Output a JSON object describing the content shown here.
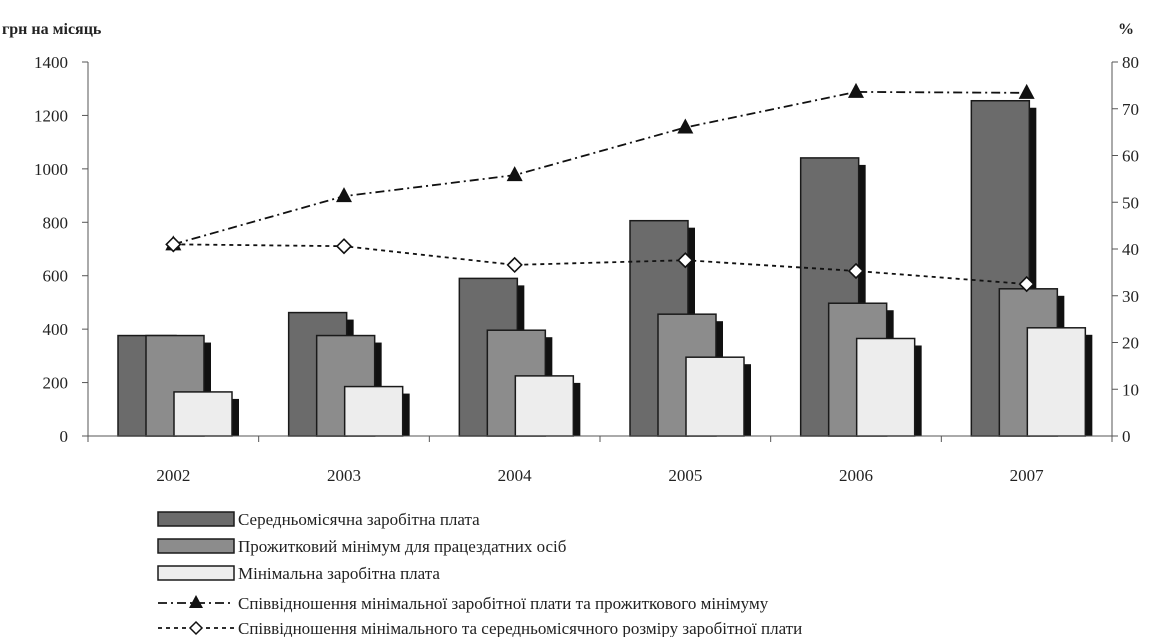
{
  "chart_data": {
    "type": "bar",
    "categories": [
      "2002",
      "2003",
      "2004",
      "2005",
      "2006",
      "2007"
    ],
    "left_axis": {
      "unit_label": "грн на місяць",
      "ylim": [
        0,
        1400
      ],
      "ticks": [
        0,
        200,
        400,
        600,
        800,
        1000,
        1200,
        1400
      ]
    },
    "right_axis": {
      "unit_label": "%",
      "ylim": [
        0,
        80
      ],
      "ticks": [
        0,
        10,
        20,
        30,
        40,
        50,
        60,
        70,
        80
      ]
    },
    "bar_series": [
      {
        "name": "Середньомісячна заробітна плата",
        "color": "#6b6b6b",
        "values": [
          376,
          462,
          590,
          806,
          1041,
          1255
        ]
      },
      {
        "name": "Прожитковий мінімум для працездатних осіб",
        "color": "#8c8c8c",
        "values": [
          376,
          376,
          396,
          456,
          497,
          551
        ]
      },
      {
        "name": "Мінімальна заробітна плата",
        "color": "#ededed",
        "values": [
          165,
          185,
          225,
          295,
          365,
          405
        ]
      }
    ],
    "line_series": [
      {
        "name": "Співвідношення мінімальної заробітної плати та прожиткового мінімуму",
        "marker": "triangle",
        "dash": "9,4,2,4",
        "axis": "right",
        "values": [
          41,
          51.3,
          55.8,
          66,
          73.6,
          73.4
        ]
      },
      {
        "name": "Співвідношення мінімального та середньомісячного розміру заробітної плати",
        "marker": "diamond",
        "dash": "4,4",
        "axis": "right",
        "values": [
          41,
          40.6,
          36.6,
          37.6,
          35.3,
          32.5
        ]
      }
    ],
    "legend_position": "bottom",
    "grid": false
  }
}
